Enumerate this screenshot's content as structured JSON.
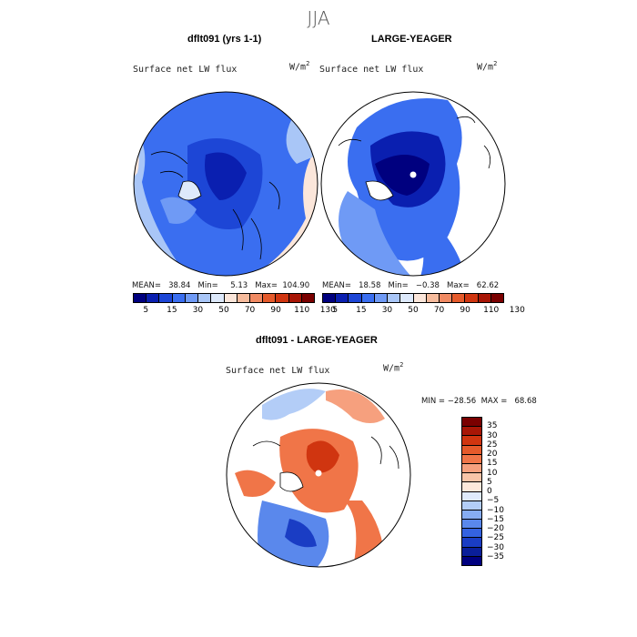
{
  "season": "JJA",
  "panels": {
    "left": {
      "title": "dflt091 (yrs 1-1)",
      "variable": "Surface net LW flux",
      "units_base": "W/m",
      "units_exp": "2",
      "stats": "MEAN=   38.84   Min=     5.13   Max=  104.90"
    },
    "right": {
      "title": "LARGE-YEAGER",
      "variable": "Surface net LW flux",
      "units_base": "W/m",
      "units_exp": "2",
      "stats": "MEAN=   18.58   Min=   −0.38   Max=   62.62"
    },
    "diff": {
      "title": "dflt091 - LARGE-YEAGER",
      "variable": "Surface net LW flux",
      "units_base": "W/m",
      "units_exp": "2",
      "stats": "MIN = −28.56  MAX =   68.68"
    }
  },
  "colorbar_abs": {
    "labels": [
      "5",
      "15",
      "30",
      "50",
      "70",
      "90",
      "110",
      "130"
    ],
    "colors": [
      "#00007f",
      "#0a1fb0",
      "#1d46d6",
      "#3a6ef0",
      "#6f9af5",
      "#a9c6f7",
      "#dde9fb",
      "#fbe6da",
      "#f6bb9c",
      "#f08a63",
      "#e55a2b",
      "#d03510",
      "#a81606",
      "#7a0000"
    ]
  },
  "colorbar_diff": {
    "labels": [
      "35",
      "30",
      "25",
      "20",
      "15",
      "10",
      "5",
      "0",
      "−5",
      "−10",
      "−15",
      "−20",
      "−25",
      "−30",
      "−35"
    ],
    "colors": [
      "#7a0000",
      "#a81606",
      "#d03510",
      "#e55a2b",
      "#f07548",
      "#f6a07e",
      "#f8c4a8",
      "#fde8db",
      "#dfeafb",
      "#b3cdf7",
      "#86acf2",
      "#5a88ec",
      "#3462e0",
      "#1a3dc4",
      "#0a1f9a",
      "#00007f"
    ]
  }
}
